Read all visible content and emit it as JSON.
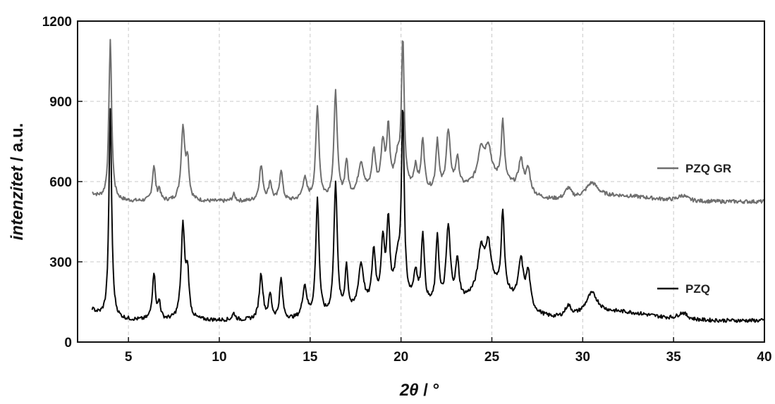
{
  "chart_data": {
    "type": "line",
    "title": "",
    "xlabel_main": "2θ",
    "xlabel_unit": " / °",
    "ylabel_main": "intenzitet",
    "ylabel_unit": " / a.u.",
    "xlim": [
      2.2,
      40
    ],
    "ylim": [
      0,
      1200
    ],
    "x_ticks": [
      5,
      10,
      15,
      20,
      25,
      30,
      35,
      40
    ],
    "x_tick_labels": [
      "5",
      "10",
      "15",
      "20",
      "25",
      "30",
      "35",
      "40"
    ],
    "y_ticks": [
      0,
      300,
      600,
      900,
      1200
    ],
    "y_tick_labels": [
      "0",
      "300",
      "600",
      "900",
      "1200"
    ],
    "grid": true,
    "legend_position": "right",
    "series": [
      {
        "name": "PZQ GR",
        "color": "#6e6e6e",
        "baseline": 525,
        "start": [
          3,
          555
        ],
        "peaks": [
          [
            4.0,
            600,
            0.09
          ],
          [
            6.4,
            130,
            0.1
          ],
          [
            6.7,
            40,
            0.08
          ],
          [
            8.0,
            270,
            0.12
          ],
          [
            8.25,
            140,
            0.1
          ],
          [
            10.8,
            25,
            0.1
          ],
          [
            12.3,
            130,
            0.12
          ],
          [
            12.8,
            70,
            0.1
          ],
          [
            13.4,
            115,
            0.1
          ],
          [
            14.7,
            80,
            0.14
          ],
          [
            15.4,
            345,
            0.11
          ],
          [
            16.4,
            395,
            0.11
          ],
          [
            17.0,
            130,
            0.1
          ],
          [
            17.8,
            120,
            0.18
          ],
          [
            18.5,
            150,
            0.12
          ],
          [
            19.0,
            170,
            0.12
          ],
          [
            19.3,
            220,
            0.1
          ],
          [
            19.8,
            100,
            0.18
          ],
          [
            20.1,
            540,
            0.09
          ],
          [
            20.8,
            80,
            0.12
          ],
          [
            21.2,
            190,
            0.1
          ],
          [
            22.0,
            190,
            0.1
          ],
          [
            22.6,
            220,
            0.14
          ],
          [
            23.1,
            110,
            0.12
          ],
          [
            24.4,
            120,
            0.2
          ],
          [
            24.8,
            120,
            0.2
          ],
          [
            25.6,
            225,
            0.1
          ],
          [
            26.6,
            110,
            0.16
          ],
          [
            27.0,
            85,
            0.14
          ],
          [
            29.2,
            40,
            0.2
          ],
          [
            30.5,
            55,
            0.4
          ],
          [
            35.5,
            20,
            0.3
          ]
        ],
        "plateaus": [
          [
            25,
            75,
            2.0
          ],
          [
            20,
            40,
            2.6
          ],
          [
            32,
            20,
            2.5
          ]
        ]
      },
      {
        "name": "PZQ",
        "color": "#0a0a0a",
        "baseline": 80,
        "start": [
          3,
          120
        ],
        "peaks": [
          [
            4.0,
            780,
            0.09
          ],
          [
            6.4,
            175,
            0.1
          ],
          [
            6.7,
            60,
            0.08
          ],
          [
            8.0,
            345,
            0.12
          ],
          [
            8.25,
            160,
            0.1
          ],
          [
            10.8,
            25,
            0.1
          ],
          [
            12.3,
            170,
            0.12
          ],
          [
            12.8,
            90,
            0.1
          ],
          [
            13.4,
            150,
            0.1
          ],
          [
            14.7,
            120,
            0.14
          ],
          [
            15.4,
            440,
            0.11
          ],
          [
            16.4,
            500,
            0.11
          ],
          [
            17.0,
            170,
            0.1
          ],
          [
            17.8,
            170,
            0.18
          ],
          [
            18.5,
            200,
            0.12
          ],
          [
            19.0,
            220,
            0.12
          ],
          [
            19.3,
            290,
            0.1
          ],
          [
            19.8,
            140,
            0.18
          ],
          [
            20.1,
            700,
            0.09
          ],
          [
            20.8,
            110,
            0.12
          ],
          [
            21.2,
            260,
            0.1
          ],
          [
            22.0,
            260,
            0.1
          ],
          [
            22.6,
            290,
            0.14
          ],
          [
            23.1,
            150,
            0.12
          ],
          [
            24.4,
            150,
            0.2
          ],
          [
            24.8,
            160,
            0.2
          ],
          [
            25.6,
            300,
            0.1
          ],
          [
            26.6,
            160,
            0.16
          ],
          [
            27.0,
            130,
            0.14
          ],
          [
            29.2,
            40,
            0.2
          ],
          [
            30.5,
            80,
            0.4
          ],
          [
            35.5,
            25,
            0.3
          ]
        ],
        "plateaus": [
          [
            25,
            110,
            2.0
          ],
          [
            20,
            60,
            2.6
          ],
          [
            32,
            30,
            2.5
          ]
        ]
      }
    ],
    "legend_entries": [
      {
        "label": "PZQ GR",
        "color": "#6e6e6e",
        "y_at": 650
      },
      {
        "label": "PZQ",
        "color": "#0a0a0a",
        "y_at": 200
      }
    ]
  }
}
